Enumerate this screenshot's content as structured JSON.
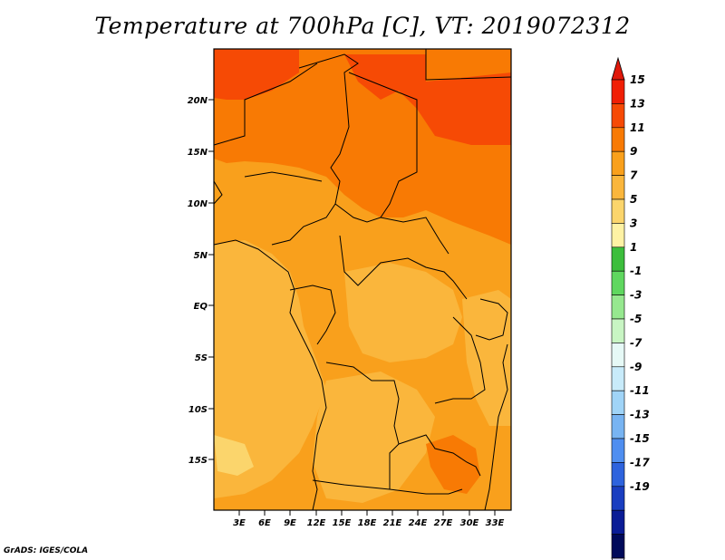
{
  "title": "Temperature at 700hPa [C], VT: 2019072312",
  "credit": "GrADS: IGES/COLA",
  "lat_labels": [
    "20N",
    "15N",
    "10N",
    "5N",
    "EQ",
    "5S",
    "10S",
    "15S"
  ],
  "lon_labels": [
    "3E",
    "6E",
    "9E",
    "12E",
    "15E",
    "18E",
    "21E",
    "24E",
    "27E",
    "30E",
    "33E"
  ],
  "colorbar": {
    "labels": [
      "15",
      "13",
      "11",
      "9",
      "7",
      "5",
      "3",
      "1",
      "-1",
      "-3",
      "-5",
      "-7",
      "-9",
      "-11",
      "-13",
      "-15",
      "-17",
      "-19"
    ],
    "colors": [
      "#f01f05",
      "#f64a05",
      "#f87a04",
      "#f9a01c",
      "#fab63c",
      "#fbd56c",
      "#fef2a4",
      "#3cbe3c",
      "#5fd75f",
      "#96e88f",
      "#c8f5c3",
      "#e6f9f6",
      "#c8ebfa",
      "#a0d4f7",
      "#78b4f2",
      "#4f8ef0",
      "#2e63dd",
      "#1a3ec0",
      "#0a1c96",
      "#000a5a"
    ],
    "top_arrow_color": "#e0180a",
    "bottom_arrow_color": "#d8d8f2"
  }
}
